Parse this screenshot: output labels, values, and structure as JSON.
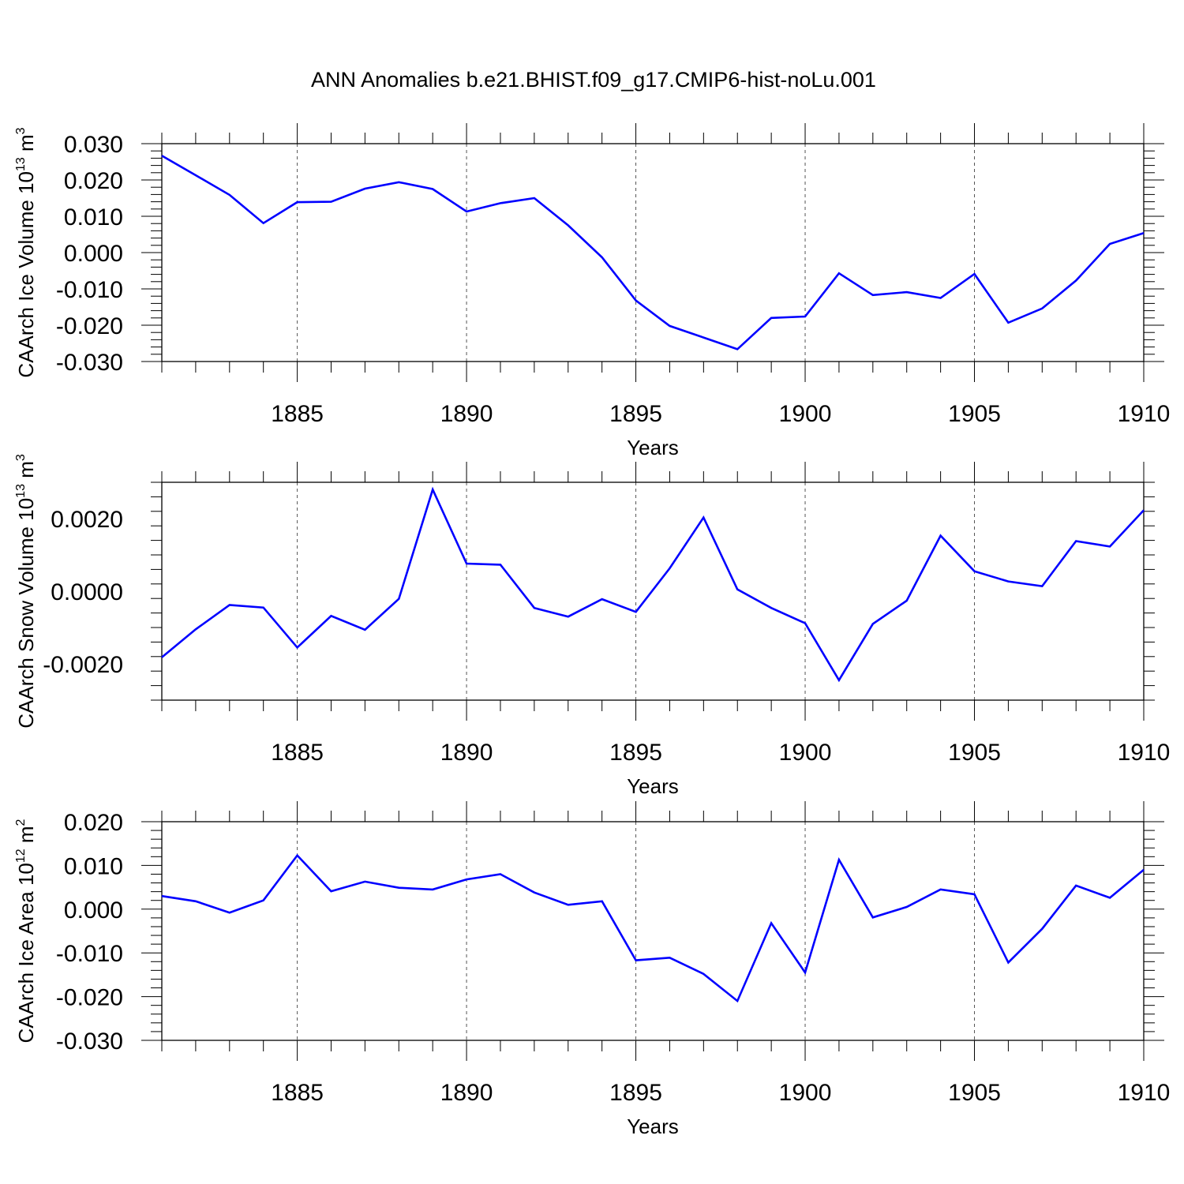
{
  "figure": {
    "title": "ANN Anomalies b.e21.BHIST.f09_g17.CMIP6-hist-noLu.001"
  },
  "chart_data": [
    {
      "type": "line",
      "ylabel": "CAArch Ice Volume 10",
      "ylabel_exp": "13",
      "ylabel_unit": " m",
      "ylabel_unit_exp": "3",
      "xlabel": "Years",
      "xlim": [
        1881,
        1910
      ],
      "ylim": [
        -0.03,
        0.03
      ],
      "yticks": [
        -0.03,
        -0.02,
        -0.01,
        0.0,
        0.01,
        0.02,
        0.03
      ],
      "ytick_labels": [
        "-0.030",
        "-0.020",
        "-0.010",
        "0.000",
        "0.010",
        "0.020",
        "0.030"
      ],
      "xticks": [
        1885,
        1890,
        1895,
        1900,
        1905,
        1910
      ],
      "xtick_labels": [
        "1885",
        "1890",
        "1895",
        "1900",
        "1905",
        "1910"
      ],
      "color": "#0000ff",
      "x": [
        1881,
        1882,
        1883,
        1884,
        1885,
        1886,
        1887,
        1888,
        1889,
        1890,
        1891,
        1892,
        1893,
        1894,
        1895,
        1896,
        1897,
        1898,
        1899,
        1900,
        1901,
        1902,
        1903,
        1904,
        1905,
        1906,
        1907,
        1908,
        1909,
        1910
      ],
      "values": [
        0.0267,
        0.0213,
        0.0159,
        0.0081,
        0.0139,
        0.014,
        0.0176,
        0.0194,
        0.0175,
        0.0113,
        0.0136,
        0.015,
        0.0075,
        -0.0013,
        -0.0132,
        -0.0202,
        -0.0234,
        -0.0266,
        -0.018,
        -0.0176,
        -0.0057,
        -0.0117,
        -0.0109,
        -0.0125,
        -0.0059,
        -0.0193,
        -0.0154,
        -0.0077,
        0.0024,
        0.0054
      ]
    },
    {
      "type": "line",
      "ylabel": "CAArch Snow Volume 10",
      "ylabel_exp": "13",
      "ylabel_unit": " m",
      "ylabel_unit_exp": "3",
      "xlabel": "Years",
      "xlim": [
        1881,
        1910
      ],
      "ylim": [
        -0.003,
        0.003
      ],
      "yticks": [
        -0.002,
        0.0,
        0.002
      ],
      "ytick_labels": [
        "-0.0020",
        "0.0000",
        "0.0020"
      ],
      "xticks": [
        1885,
        1890,
        1895,
        1900,
        1905,
        1910
      ],
      "xtick_labels": [
        "1885",
        "1890",
        "1895",
        "1900",
        "1905",
        "1910"
      ],
      "color": "#0000ff",
      "x": [
        1881,
        1882,
        1883,
        1884,
        1885,
        1886,
        1887,
        1888,
        1889,
        1890,
        1891,
        1892,
        1893,
        1894,
        1895,
        1896,
        1897,
        1898,
        1899,
        1900,
        1901,
        1902,
        1903,
        1904,
        1905,
        1906,
        1907,
        1908,
        1909,
        1910
      ],
      "values": [
        -0.00182,
        -0.00105,
        -0.00038,
        -0.00045,
        -0.00155,
        -0.00068,
        -0.00106,
        -0.00021,
        0.0028,
        0.00076,
        0.00073,
        -0.00046,
        -0.0007,
        -0.00022,
        -0.00057,
        0.00063,
        0.00203,
        5e-05,
        -0.00046,
        -0.00088,
        -0.00245,
        -0.0009,
        -0.00026,
        0.00153,
        0.00055,
        0.00027,
        0.00014,
        0.00138,
        0.00123,
        0.00223
      ]
    },
    {
      "type": "line",
      "ylabel": "CAArch Ice Area 10",
      "ylabel_exp": "12",
      "ylabel_unit": " m",
      "ylabel_unit_exp": "2",
      "xlabel": "Years",
      "xlim": [
        1881,
        1910
      ],
      "ylim": [
        -0.03,
        0.02
      ],
      "yticks": [
        -0.03,
        -0.02,
        -0.01,
        0.0,
        0.01,
        0.02
      ],
      "ytick_labels": [
        "-0.030",
        "-0.020",
        "-0.010",
        "0.000",
        "0.010",
        "0.020"
      ],
      "xticks": [
        1885,
        1890,
        1895,
        1900,
        1905,
        1910
      ],
      "xtick_labels": [
        "1885",
        "1890",
        "1895",
        "1900",
        "1905",
        "1910"
      ],
      "color": "#0000ff",
      "x": [
        1881,
        1882,
        1883,
        1884,
        1885,
        1886,
        1887,
        1888,
        1889,
        1890,
        1891,
        1892,
        1893,
        1894,
        1895,
        1896,
        1897,
        1898,
        1899,
        1900,
        1901,
        1902,
        1903,
        1904,
        1905,
        1906,
        1907,
        1908,
        1909,
        1910
      ],
      "values": [
        0.003,
        0.0018,
        -0.0008,
        0.002,
        0.0123,
        0.0041,
        0.0063,
        0.0049,
        0.0045,
        0.0068,
        0.008,
        0.0038,
        0.001,
        0.0018,
        -0.0117,
        -0.0111,
        -0.0148,
        -0.021,
        -0.0032,
        -0.0145,
        0.0113,
        -0.0019,
        0.0005,
        0.0045,
        0.0034,
        -0.0122,
        -0.0045,
        0.0054,
        0.0026,
        0.009
      ]
    }
  ]
}
